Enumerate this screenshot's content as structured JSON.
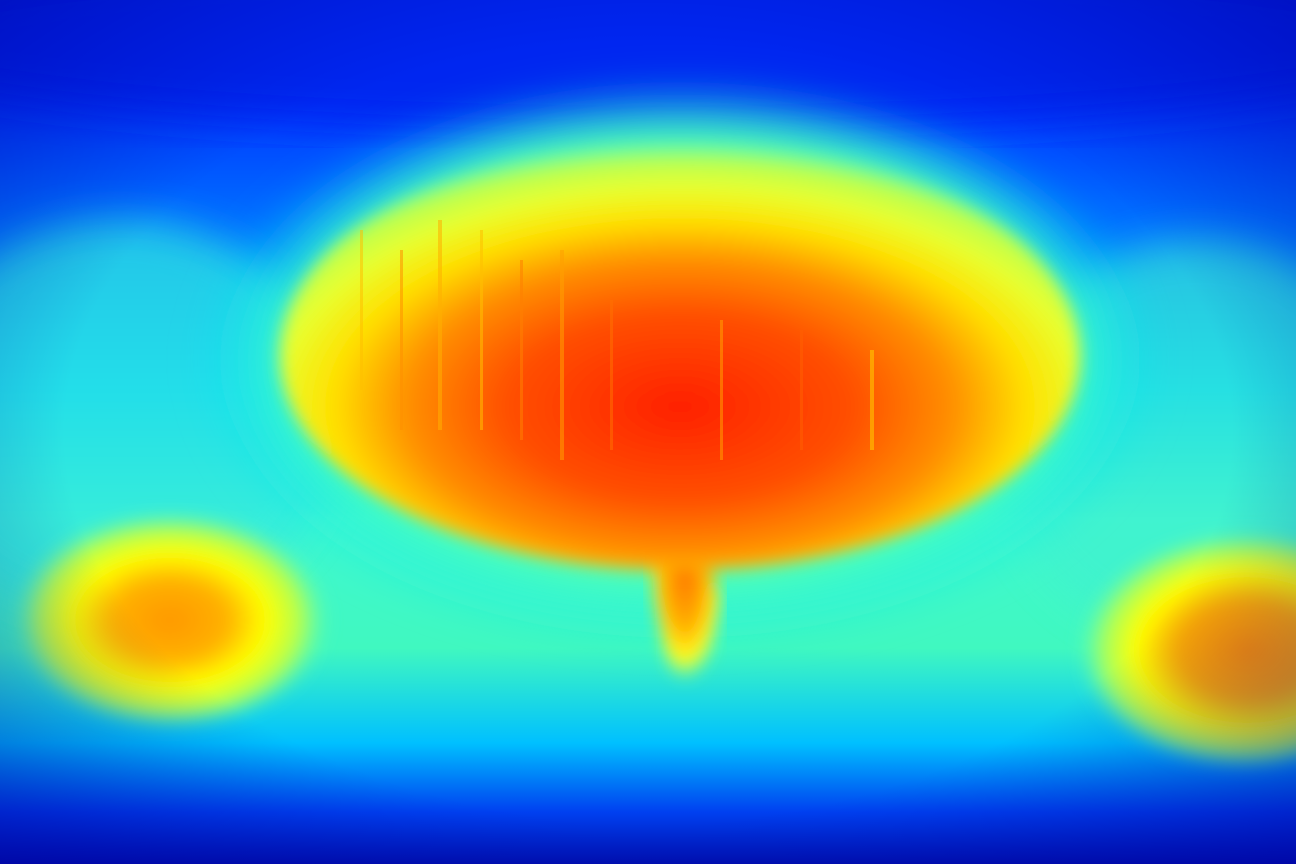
{
  "image": {
    "kind": "heatmap-visualization",
    "description_colormap": "jet",
    "palette": {
      "deep_blue": "#0008a8",
      "blue": "#0030ff",
      "light_blue": "#0090ff",
      "cyan": "#00f0f0",
      "aqua_green": "#40ffb0",
      "yellow_green": "#c0ff40",
      "yellow": "#ffff00",
      "orange": "#ffa000",
      "red_orange": "#ff5000",
      "red": "#ff2000"
    },
    "regions": [
      {
        "name": "central-ellipse-hotspot",
        "intensity": "high"
      },
      {
        "name": "stem-hotspot",
        "intensity": "medium-high"
      },
      {
        "name": "left-lower-blob",
        "intensity": "medium"
      },
      {
        "name": "right-lower-blob",
        "intensity": "medium"
      },
      {
        "name": "background",
        "intensity": "low"
      }
    ]
  }
}
